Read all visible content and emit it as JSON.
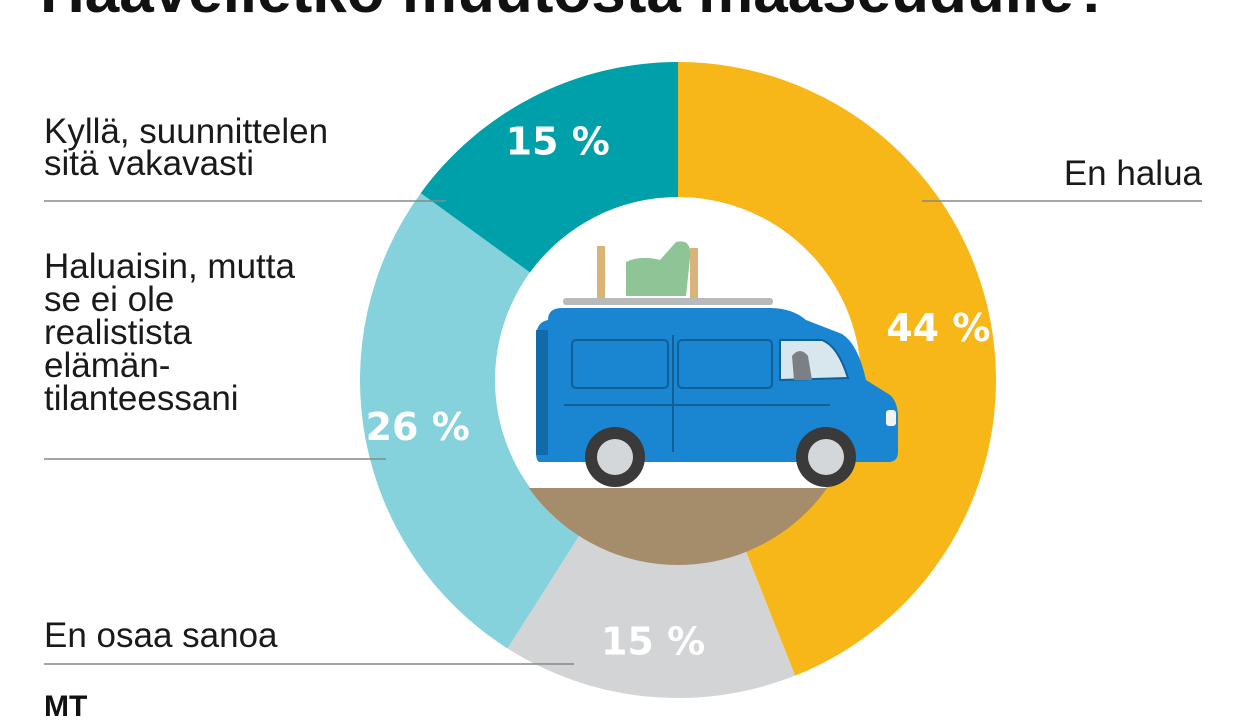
{
  "chart_data": {
    "type": "pie",
    "title": "Haaveiletko muutosta maaseudulle?",
    "slices": [
      {
        "label": "En halua",
        "value": 44,
        "value_label": "44 %",
        "color": "#f7b719"
      },
      {
        "label": "En osaa sanoa",
        "value": 15,
        "value_label": "15 %",
        "color": "#d3d4d5"
      },
      {
        "label": "Haluaisin, mutta se ei ole realistista elämän- tilanteessani",
        "value": 26,
        "value_label": "26 %",
        "color": "#85d1dc"
      },
      {
        "label": "Kyllä, suunnittelen sitä vakavasti",
        "value": 15,
        "value_label": "15 %",
        "color": "#00a0aa"
      }
    ],
    "legend": "labels-outside"
  },
  "labels": {
    "en_halua": "En halua",
    "en_osaa": "En osaa sanoa",
    "haluaisin": [
      "Haluaisin, mutta",
      "se ei ole",
      "realistista",
      "elämän-",
      "tilanteessani"
    ],
    "kylla": [
      "Kyllä, suunnittelen",
      "sitä vakavasti"
    ]
  },
  "brand": "MT"
}
